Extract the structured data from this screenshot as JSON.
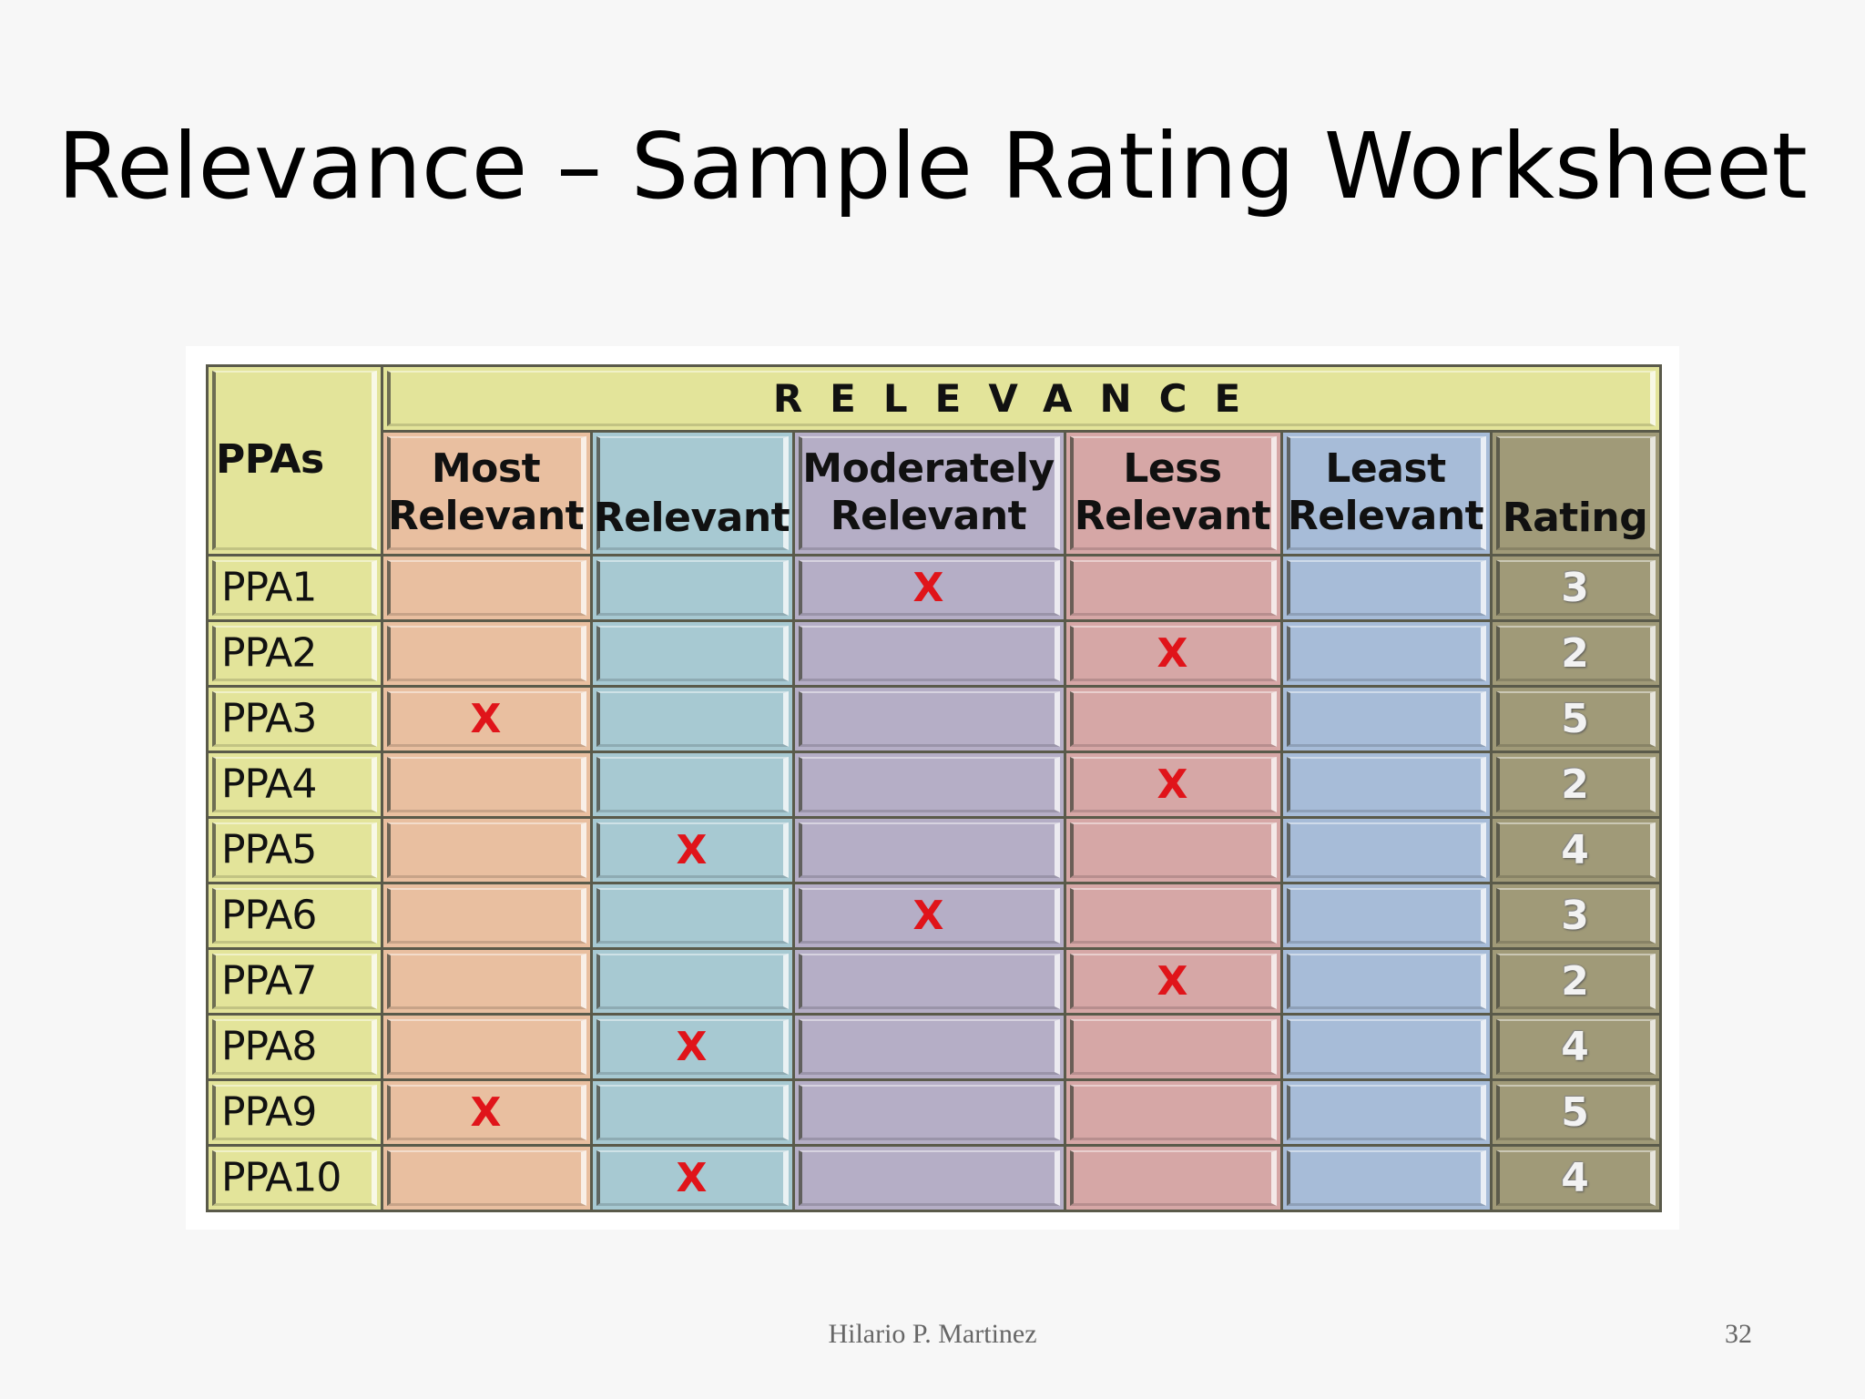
{
  "slide": {
    "title": "Relevance – Sample Rating Worksheet",
    "author": "Hilario P. Martinez",
    "page_number": "32"
  },
  "table": {
    "corner_label": "PPAs",
    "group_header": "RELEVANCE",
    "columns": [
      {
        "label": "Most Relevant",
        "color": "#e9bfa0"
      },
      {
        "label": "Relevant",
        "color": "#a7c9d2"
      },
      {
        "label": "Moderately Relevant",
        "color": "#b5aec6"
      },
      {
        "label": "Less Relevant",
        "color": "#d6a7a6"
      },
      {
        "label": "Least Relevant",
        "color": "#a7bcd8"
      },
      {
        "label": "Rating",
        "color": "#a09a78"
      }
    ],
    "label_column_color": "#e3e49a",
    "mark_symbol": "X",
    "rows": [
      {
        "ppa": "PPA1",
        "marked_column": 2,
        "rating": "3"
      },
      {
        "ppa": "PPA2",
        "marked_column": 3,
        "rating": "2"
      },
      {
        "ppa": "PPA3",
        "marked_column": 0,
        "rating": "5"
      },
      {
        "ppa": "PPA4",
        "marked_column": 3,
        "rating": "2"
      },
      {
        "ppa": "PPA5",
        "marked_column": 1,
        "rating": "4"
      },
      {
        "ppa": "PPA6",
        "marked_column": 2,
        "rating": "3"
      },
      {
        "ppa": "PPA7",
        "marked_column": 3,
        "rating": "2"
      },
      {
        "ppa": "PPA8",
        "marked_column": 1,
        "rating": "4"
      },
      {
        "ppa": "PPA9",
        "marked_column": 0,
        "rating": "5"
      },
      {
        "ppa": "PPA10",
        "marked_column": 1,
        "rating": "4"
      }
    ]
  }
}
